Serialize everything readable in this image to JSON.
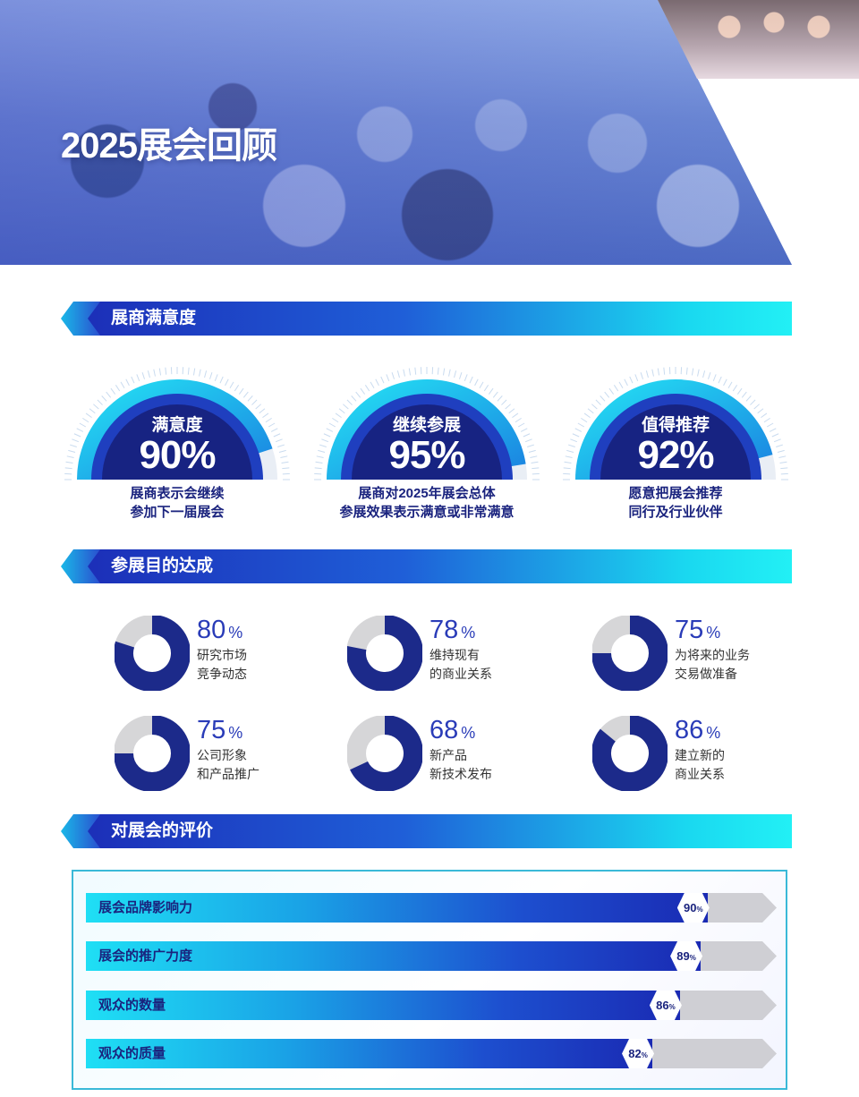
{
  "hero": {
    "title": "2025展会回顾"
  },
  "sections": {
    "satisfaction": "展商满意度",
    "goals": "参展目的达成",
    "evaluation": "对展会的评价"
  },
  "gauges": [
    {
      "label": "满意度",
      "value": "90%",
      "percent": 90,
      "desc1": "展商表示会继续",
      "desc2": "参加下一届展会"
    },
    {
      "label": "继续参展",
      "value": "95%",
      "percent": 95,
      "desc1": "展商对2025年展会总体",
      "desc2": "参展效果表示满意或非常满意"
    },
    {
      "label": "值得推荐",
      "value": "92%",
      "percent": 92,
      "desc1": "愿意把展会推荐",
      "desc2": "同行及行业伙伴"
    }
  ],
  "goals": [
    {
      "value": "80",
      "unit": "%",
      "percent": 80,
      "line1": "研究市场",
      "line2": "竞争动态"
    },
    {
      "value": "78",
      "unit": "%",
      "percent": 78,
      "line1": "维持现有",
      "line2": "的商业关系"
    },
    {
      "value": "75",
      "unit": "%",
      "percent": 75,
      "line1": "为将来的业务",
      "line2": "交易做准备"
    },
    {
      "value": "75",
      "unit": "%",
      "percent": 75,
      "line1": "公司形象",
      "line2": "和产品推广"
    },
    {
      "value": "68",
      "unit": "%",
      "percent": 68,
      "line1": "新产品",
      "line2": "新技术发布"
    },
    {
      "value": "86",
      "unit": "%",
      "percent": 86,
      "line1": "建立新的",
      "line2": "商业关系"
    }
  ],
  "ratings": [
    {
      "label": "展会品牌影响力",
      "value": "90",
      "unit": "%",
      "percent": 90
    },
    {
      "label": "展会的推广力度",
      "value": "89",
      "unit": "%",
      "percent": 89
    },
    {
      "label": "观众的数量",
      "value": "86",
      "unit": "%",
      "percent": 86
    },
    {
      "label": "观众的质量",
      "value": "82",
      "unit": "%",
      "percent": 82
    }
  ],
  "colors": {
    "navy": "#1a237e",
    "blue": "#1f3fbf",
    "cyan": "#1fdff5",
    "track": "#cfcfd4",
    "donut": "#1c2a8a",
    "donut_rest": "#d6d6d8"
  }
}
